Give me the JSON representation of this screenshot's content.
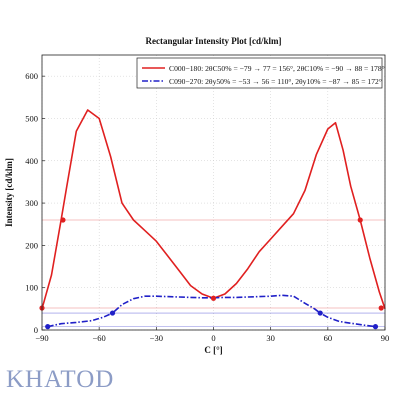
{
  "chart_data": {
    "type": "line",
    "title": "Rectangular Intensity Plot [cd/klm]",
    "xlabel": "C [°]",
    "ylabel": "Intensity [cd/klm]",
    "xlim": [
      -90,
      90
    ],
    "ylim": [
      0,
      650
    ],
    "xticks": [
      -90,
      -60,
      -30,
      0,
      30,
      60,
      90
    ],
    "yticks": [
      0,
      100,
      200,
      300,
      400,
      500,
      600
    ],
    "grid": true,
    "legend_position": "top-right",
    "series": [
      {
        "name": "C000–180",
        "legend_text": "C000−180: 2θC50% = −79 → 77 = 156°, 2θC10% = −90 → 88 = 178°",
        "color": "#e02020",
        "style": "solid",
        "x": [
          -90,
          -85,
          -80,
          -77,
          -72,
          -66,
          -60,
          -54,
          -48,
          -42,
          -36,
          -30,
          -24,
          -18,
          -12,
          -6,
          0,
          6,
          12,
          18,
          24,
          30,
          36,
          42,
          48,
          54,
          60,
          64,
          68,
          72,
          77,
          82,
          87,
          90
        ],
        "y": [
          50,
          130,
          260,
          340,
          470,
          520,
          500,
          410,
          300,
          260,
          235,
          210,
          175,
          140,
          105,
          85,
          75,
          85,
          110,
          145,
          185,
          215,
          245,
          275,
          330,
          415,
          475,
          490,
          425,
          340,
          260,
          170,
          90,
          50
        ],
        "markers": [
          {
            "x": -90,
            "y": 52
          },
          {
            "x": -79,
            "y": 260
          },
          {
            "x": 0,
            "y": 75
          },
          {
            "x": 77,
            "y": 260
          },
          {
            "x": 88,
            "y": 52
          }
        ],
        "reference_lines": [
          260,
          52
        ]
      },
      {
        "name": "C090–270",
        "legend_text": "C090−270: 2θy50% = −53 → 56 = 110°, 2θy10% = −87 → 85 = 172°",
        "color": "#2020c8",
        "style": "dashdot",
        "x": [
          -87,
          -80,
          -72,
          -64,
          -58,
          -53,
          -48,
          -42,
          -36,
          -30,
          -24,
          -18,
          -12,
          -6,
          0,
          6,
          12,
          18,
          24,
          30,
          36,
          42,
          48,
          53,
          56,
          60,
          66,
          72,
          78,
          85
        ],
        "y": [
          8,
          15,
          18,
          22,
          30,
          40,
          60,
          74,
          80,
          80,
          79,
          78,
          77,
          76,
          76,
          77,
          77,
          78,
          79,
          80,
          82,
          80,
          63,
          50,
          40,
          30,
          20,
          16,
          12,
          8
        ],
        "markers": [
          {
            "x": -87,
            "y": 8
          },
          {
            "x": -53,
            "y": 40
          },
          {
            "x": 56,
            "y": 40
          },
          {
            "x": 85,
            "y": 8
          }
        ],
        "reference_lines": [
          40,
          8
        ]
      }
    ]
  },
  "brand": {
    "logo_text": "KHATOD"
  }
}
